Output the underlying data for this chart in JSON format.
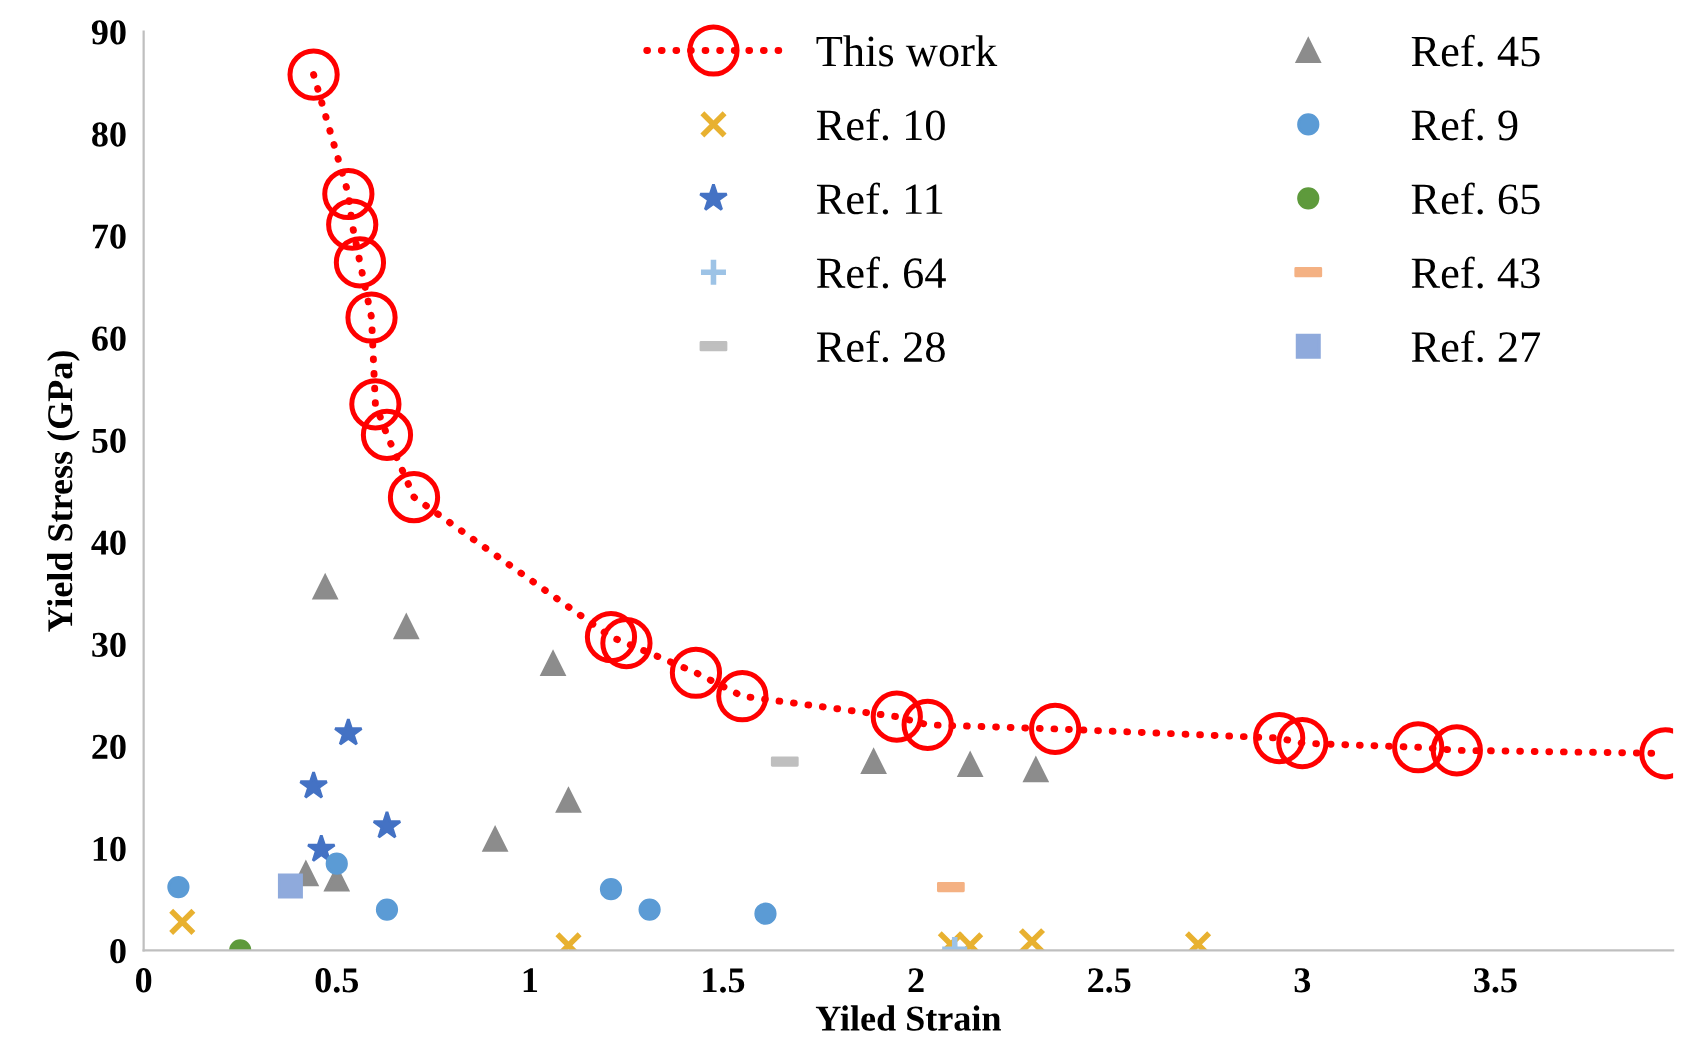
{
  "chart_data": {
    "type": "scatter",
    "xlabel": "Yiled Strain",
    "ylabel": "Yield Stress (GPa)",
    "xlim": [
      0,
      3.96
    ],
    "xticks": [
      0,
      0.5,
      1,
      1.5,
      2,
      2.5,
      3,
      3.5
    ],
    "ylim": [
      0,
      90
    ],
    "yticks": [
      0,
      10,
      20,
      30,
      40,
      50,
      60,
      70,
      80,
      90
    ],
    "grid": false,
    "legend": "top right",
    "series": [
      {
        "name": "This work",
        "type": "line",
        "color": "#ff0000",
        "marker": "circle",
        "line_style": "dotted",
        "x": [
          0.44,
          0.53,
          0.54,
          0.56,
          0.59,
          0.6,
          0.63,
          0.7,
          1.21,
          1.25,
          1.43,
          1.55,
          1.95,
          2.03,
          2.36,
          2.94,
          3.0,
          3.3,
          3.4,
          3.94
        ],
        "values": [
          85.8,
          74.1,
          71.1,
          67.4,
          62.0,
          53.5,
          50.5,
          44.4,
          30.7,
          30.1,
          27.2,
          24.9,
          22.9,
          22.1,
          21.7,
          20.8,
          20.3,
          19.9,
          19.6,
          19.3
        ]
      },
      {
        "name": "Ref. 10",
        "color": "#e8b130",
        "marker": "cross",
        "x": [
          0.1,
          1.1,
          2.09,
          2.14,
          2.3,
          2.73
        ],
        "values": [
          2.8,
          0.5,
          0.6,
          0.5,
          0.9,
          0.6
        ]
      },
      {
        "name": "Ref. 11",
        "color": "#4472c4",
        "marker": "star",
        "x": [
          0.53,
          0.44,
          0.63,
          0.46
        ],
        "values": [
          21.3,
          16.1,
          12.2,
          9.9
        ]
      },
      {
        "name": "Ref. 64",
        "color": "#9dc3e6",
        "marker": "plus",
        "x": [
          2.1
        ],
        "values": [
          0.1
        ]
      },
      {
        "name": "Ref. 28",
        "color": "#bfbfbf",
        "x": [
          1.66
        ],
        "values": [
          18.5
        ]
      },
      {
        "name": "Ref. 45",
        "color": "#8c8c8c",
        "marker": "triangle",
        "x": [
          0.47,
          0.68,
          1.06,
          1.1,
          0.91,
          0.42,
          0.5,
          1.89,
          2.14,
          2.31
        ],
        "values": [
          35.6,
          31.7,
          28.1,
          14.7,
          10.9,
          7.5,
          7.0,
          18.5,
          18.2,
          17.7
        ]
      },
      {
        "name": "Ref. 9",
        "color": "#5b9bd5",
        "marker": "circle",
        "x": [
          0.09,
          0.5,
          0.63,
          1.21,
          1.31,
          1.61
        ],
        "values": [
          6.2,
          8.5,
          4.0,
          6.0,
          4.0,
          3.6
        ]
      },
      {
        "name": "Ref. 65",
        "color": "#5e9a3c",
        "marker": "circle",
        "x": [
          0.25
        ],
        "values": [
          0
        ]
      },
      {
        "name": "Ref. 43",
        "color": "#f4b183",
        "x": [
          2.09
        ],
        "values": [
          6.2
        ]
      },
      {
        "name": "Ref. 27",
        "color": "#8faadc",
        "marker": "square",
        "x": [
          0.38
        ],
        "values": [
          6.3
        ]
      }
    ]
  }
}
